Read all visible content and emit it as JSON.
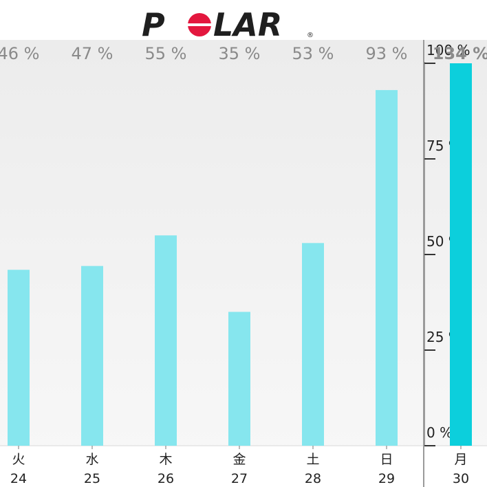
{
  "brand": {
    "logo_text": "POLAR",
    "registered_mark": "®",
    "colors": {
      "ink": "#1f1f1f",
      "red": "#e3173e"
    }
  },
  "colors": {
    "bar": "#86e6ee",
    "bar_highlight": "#0ccfdc",
    "axis": "#9a9a9a",
    "bg_top": "#ececec",
    "bg_bottom": "#f8f8f8"
  },
  "chart_data": {
    "type": "bar",
    "categories": [
      {
        "day": "火",
        "date": "24"
      },
      {
        "day": "水",
        "date": "25"
      },
      {
        "day": "木",
        "date": "26"
      },
      {
        "day": "金",
        "date": "27"
      },
      {
        "day": "土",
        "date": "28"
      },
      {
        "day": "日",
        "date": "29"
      },
      {
        "day": "月",
        "date": "30"
      }
    ],
    "values": [
      46,
      47,
      55,
      35,
      53,
      93,
      134
    ],
    "value_labels": [
      "46 %",
      "47 %",
      "55 %",
      "35 %",
      "53 %",
      "93 %",
      "134 %"
    ],
    "highlight_index": 6,
    "ylim": [
      0,
      100
    ],
    "y_ticks": [
      {
        "value": 0,
        "label": "0 %"
      },
      {
        "value": 25,
        "label": "25 %"
      },
      {
        "value": 50,
        "label": "50 %"
      },
      {
        "value": 75,
        "label": "75 %"
      },
      {
        "value": 100,
        "label": "100 %"
      }
    ],
    "grid": false
  }
}
